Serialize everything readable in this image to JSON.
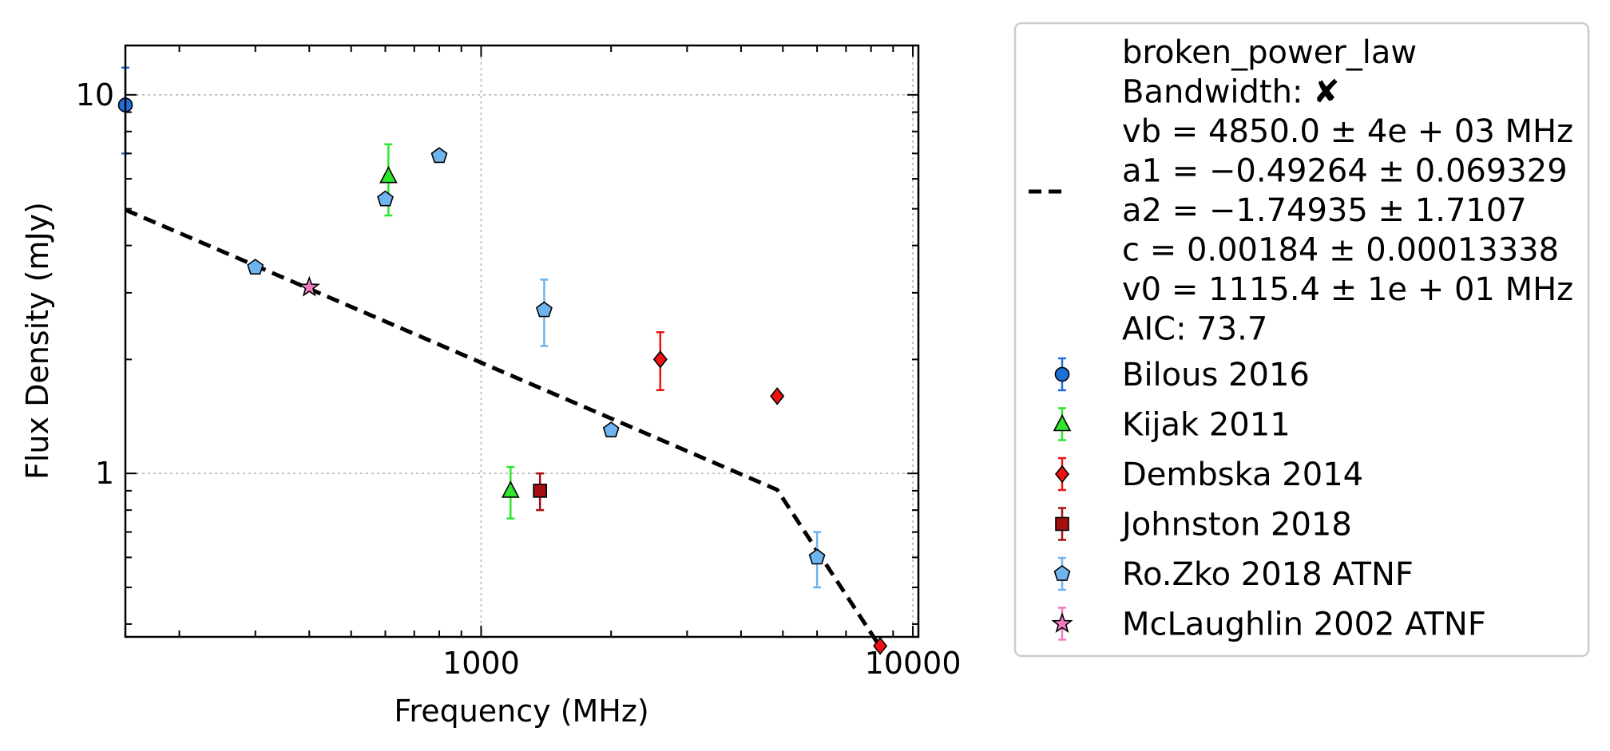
{
  "chart_data": {
    "type": "scatter",
    "xscale": "log",
    "yscale": "log",
    "xlim": [
      150,
      10300
    ],
    "ylim": [
      0.37,
      13.5
    ],
    "xlabel": "Frequency (MHz)",
    "ylabel": "Flux Density (mJy)",
    "xticks": [
      {
        "value": 1000,
        "label": "1000"
      },
      {
        "value": 10000,
        "label": "10000"
      }
    ],
    "yticks": [
      {
        "value": 1,
        "label": "1"
      },
      {
        "value": 10,
        "label": "10"
      }
    ],
    "grid": true,
    "legend_position": "outside-right",
    "fit": {
      "name": "broken_power_law",
      "style": "dashed",
      "color": "#000000",
      "points": [
        {
          "x": 150,
          "y": 4.97
        },
        {
          "x": 4850,
          "y": 0.905
        },
        {
          "x": 8400,
          "y": 0.348
        }
      ],
      "legend_lines": [
        "broken_power_law",
        "Bandwidth: ✘",
        "vb = 4850.0 ± 4e + 03 MHz",
        "a1 = −0.49264 ± 0.069329",
        "a2 = −1.74935 ± 1.7107",
        "c = 0.00184 ± 0.00013338",
        "v0 = 1115.4 ± 1e + 01 MHz",
        "AIC: 73.7"
      ]
    },
    "series": [
      {
        "name": "Bilous 2016",
        "marker": "circle",
        "color": "#1f6fd6",
        "errcolor": "#1f6fd6",
        "points": [
          {
            "x": 150,
            "y": 9.4,
            "lo": 7.0,
            "hi": 11.8
          }
        ]
      },
      {
        "name": "Kijak 2011",
        "marker": "triangle",
        "color": "#2ee62e",
        "errcolor": "#2ee62e",
        "points": [
          {
            "x": 610,
            "y": 6.1,
            "lo": 4.8,
            "hi": 7.4
          },
          {
            "x": 1170,
            "y": 0.9,
            "lo": 0.76,
            "hi": 1.04
          }
        ]
      },
      {
        "name": "Dembska 2014",
        "marker": "diamond",
        "color": "#ee1111",
        "errcolor": "#ee1111",
        "points": [
          {
            "x": 2600,
            "y": 2.0,
            "lo": 1.66,
            "hi": 2.36
          },
          {
            "x": 4850,
            "y": 1.6,
            "lo": null,
            "hi": null
          },
          {
            "x": 8400,
            "y": 0.35,
            "lo": null,
            "hi": null
          }
        ]
      },
      {
        "name": "Johnston 2018",
        "marker": "square",
        "color": "#a50f0f",
        "errcolor": "#a50f0f",
        "points": [
          {
            "x": 1369,
            "y": 0.9,
            "lo": 0.8,
            "hi": 1.0
          }
        ]
      },
      {
        "name": "Ro.Zko 2018 ATNF",
        "marker": "pentagon",
        "color": "#6fb4ee",
        "errcolor": "#6fb4ee",
        "points": [
          {
            "x": 300,
            "y": 3.5,
            "lo": null,
            "hi": null
          },
          {
            "x": 600,
            "y": 5.3,
            "lo": null,
            "hi": null
          },
          {
            "x": 800,
            "y": 6.9,
            "lo": null,
            "hi": null
          },
          {
            "x": 1400,
            "y": 2.7,
            "lo": 2.17,
            "hi": 3.25
          },
          {
            "x": 2000,
            "y": 1.3,
            "lo": null,
            "hi": null
          },
          {
            "x": 6000,
            "y": 0.6,
            "lo": 0.5,
            "hi": 0.7
          }
        ]
      },
      {
        "name": "McLaughlin 2002 ATNF",
        "marker": "star",
        "color": "#f07ac0",
        "errcolor": "#f07ac0",
        "points": [
          {
            "x": 400,
            "y": 3.1,
            "lo": null,
            "hi": null
          }
        ]
      }
    ]
  }
}
